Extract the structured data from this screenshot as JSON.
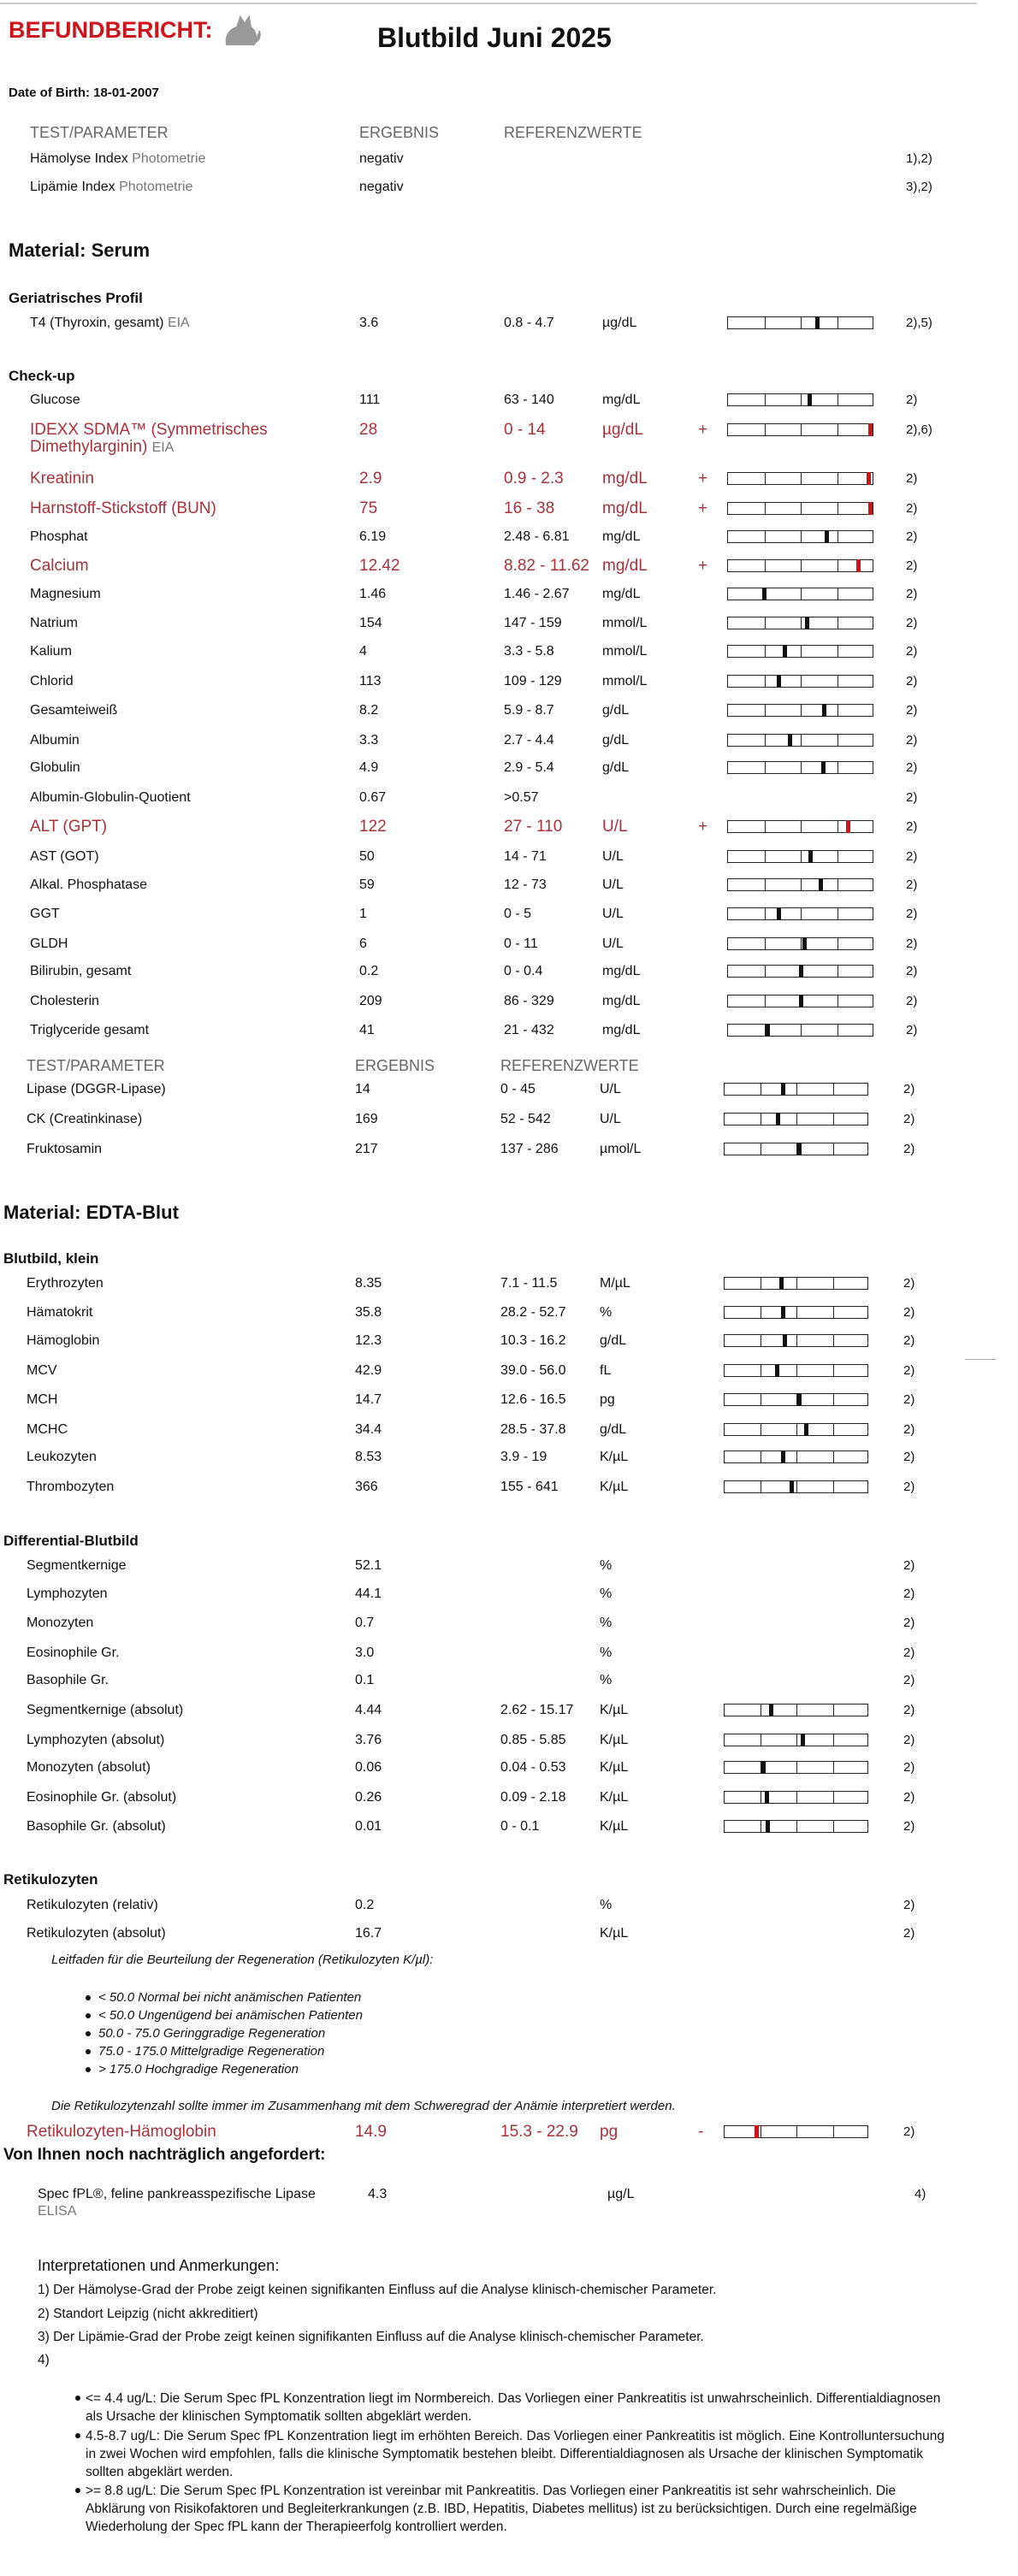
{
  "header": {
    "title": "BEFUNDBERICHT:",
    "subtitle": "Blutbild Juni 2025",
    "dob": "Date of Birth: 18-01-2007"
  },
  "intro": {
    "columns": [
      "TEST/PARAMETER",
      "ERGEBNIS",
      "REFERENZWERTE"
    ],
    "rows": [
      {
        "param": "Hämolyse Index",
        "method": "Photometrie",
        "result": "negativ",
        "note": "1),2)"
      },
      {
        "param": "Lipämie Index",
        "method": "Photometrie",
        "result": "negativ",
        "note": "3),2)"
      }
    ]
  },
  "serum": {
    "material": "Material: Serum",
    "profile": {
      "title": "Geriatrisches Profil",
      "rows": [
        {
          "param": "T4 (Thyroxin, gesamt)",
          "method": "EIA",
          "result": "3.6",
          "range": "0.8 - 4.7",
          "unit": "µg/dL",
          "note": "2),5)"
        }
      ]
    },
    "checkup": {
      "title": "Check-up",
      "rows": [
        {
          "param": "Glucose",
          "result": "111",
          "range": "63 - 140",
          "unit": "mg/dL",
          "note": "2)"
        },
        {
          "param": "IDEXX SDMA™ (Symmetrisches Dimethylarginin)",
          "method": "EIA",
          "result": "28",
          "range": "0 - 14",
          "unit": "µg/dL",
          "flag": "+",
          "note": "2),6)"
        },
        {
          "param": "Kreatinin",
          "result": "2.9",
          "range": "0.9 - 2.3",
          "unit": "mg/dL",
          "flag": "+",
          "note": "2)"
        },
        {
          "param": "Harnstoff-Stickstoff (BUN)",
          "result": "75",
          "range": "16 - 38",
          "unit": "mg/dL",
          "flag": "+",
          "note": "2)"
        },
        {
          "param": "Phosphat",
          "result": "6.19",
          "range": "2.48 - 6.81",
          "unit": "mg/dL",
          "note": "2)"
        },
        {
          "param": "Calcium",
          "result": "12.42",
          "range": "8.82 - 11.62",
          "unit": "mg/dL",
          "flag": "+",
          "note": "2)"
        },
        {
          "param": "Magnesium",
          "result": "1.46",
          "range": "1.46 - 2.67",
          "unit": "mg/dL",
          "note": "2)"
        },
        {
          "param": "Natrium",
          "result": "154",
          "range": "147 - 159",
          "unit": "mmol/L",
          "note": "2)"
        },
        {
          "param": "Kalium",
          "result": "4",
          "range": "3.3 - 5.8",
          "unit": "mmol/L",
          "note": "2)"
        },
        {
          "param": "Chlorid",
          "result": "113",
          "range": "109 - 129",
          "unit": "mmol/L",
          "note": "2)"
        },
        {
          "param": "Gesamteiweiß",
          "result": "8.2",
          "range": "5.9 - 8.7",
          "unit": "g/dL",
          "note": "2)"
        },
        {
          "param": "Albumin",
          "result": "3.3",
          "range": "2.7 - 4.4",
          "unit": "g/dL",
          "note": "2)"
        },
        {
          "param": "Globulin",
          "result": "4.9",
          "range": "2.9 - 5.4",
          "unit": "g/dL",
          "note": "2)"
        },
        {
          "param": "Albumin-Globulin-Quotient",
          "result": "0.67",
          "range": ">0.57",
          "note": "2)"
        },
        {
          "param": "ALT (GPT)",
          "result": "122",
          "range": "27 - 110",
          "unit": "U/L",
          "flag": "+",
          "note": "2)"
        },
        {
          "param": "AST (GOT)",
          "result": "50",
          "range": "14 - 71",
          "unit": "U/L",
          "note": "2)"
        },
        {
          "param": "Alkal. Phosphatase",
          "result": "59",
          "range": "12 - 73",
          "unit": "U/L",
          "note": "2)"
        },
        {
          "param": "GGT",
          "result": "1",
          "range": "0 - 5",
          "unit": "U/L",
          "note": "2)"
        },
        {
          "param": "GLDH",
          "result": "6",
          "range": "0 - 11",
          "unit": "U/L",
          "note": "2)"
        },
        {
          "param": "Bilirubin, gesamt",
          "result": "0.2",
          "range": "0 - 0.4",
          "unit": "mg/dL",
          "note": "2)"
        },
        {
          "param": "Cholesterin",
          "result": "209",
          "range": "86 - 329",
          "unit": "mg/dL",
          "note": "2)"
        },
        {
          "param": "Triglyceride gesamt",
          "result": "41",
          "range": "21 - 432",
          "unit": "mg/dL",
          "note": "2)"
        }
      ]
    },
    "extra": {
      "columns": [
        "TEST/PARAMETER",
        "ERGEBNIS",
        "REFERENZWERTE"
      ],
      "rows": [
        {
          "param": "Lipase (DGGR-Lipase)",
          "result": "14",
          "range": "0 - 45",
          "unit": "U/L",
          "note": "2)"
        },
        {
          "param": "CK (Creatinkinase)",
          "result": "169",
          "range": "52 - 542",
          "unit": "U/L",
          "note": "2)"
        },
        {
          "param": "Fruktosamin",
          "result": "217",
          "range": "137 - 286",
          "unit": "µmol/L",
          "note": "2)"
        }
      ]
    }
  },
  "edta": {
    "material": "Material: EDTA-Blut",
    "blutbild": {
      "title": "Blutbild, klein",
      "rows": [
        {
          "param": "Erythrozyten",
          "result": "8.35",
          "range": "7.1 - 11.5",
          "unit": "M/µL",
          "note": "2)"
        },
        {
          "param": "Hämatokrit",
          "result": "35.8",
          "range": "28.2 - 52.7",
          "unit": "%",
          "note": "2)"
        },
        {
          "param": "Hämoglobin",
          "result": "12.3",
          "range": "10.3 - 16.2",
          "unit": "g/dL",
          "note": "2)"
        },
        {
          "param": "MCV",
          "result": "42.9",
          "range": "39.0 - 56.0",
          "unit": "fL",
          "note": "2)"
        },
        {
          "param": "MCH",
          "result": "14.7",
          "range": "12.6 - 16.5",
          "unit": "pg",
          "note": "2)"
        },
        {
          "param": "MCHC",
          "result": "34.4",
          "range": "28.5 - 37.8",
          "unit": "g/dL",
          "note": "2)"
        },
        {
          "param": "Leukozyten",
          "result": "8.53",
          "range": "3.9 - 19",
          "unit": "K/µL",
          "note": "2)"
        },
        {
          "param": "Thrombozyten",
          "result": "366",
          "range": "155 - 641",
          "unit": "K/µL",
          "note": "2)"
        }
      ]
    },
    "differential": {
      "title": "Differential-Blutbild",
      "rows": [
        {
          "param": "Segmentkernige",
          "result": "52.1",
          "unit": "%",
          "note": "2)"
        },
        {
          "param": "Lymphozyten",
          "result": "44.1",
          "unit": "%",
          "note": "2)"
        },
        {
          "param": "Monozyten",
          "result": "0.7",
          "unit": "%",
          "note": "2)"
        },
        {
          "param": "Eosinophile Gr.",
          "result": "3.0",
          "unit": "%",
          "note": "2)"
        },
        {
          "param": "Basophile Gr.",
          "result": "0.1",
          "unit": "%",
          "note": "2)"
        },
        {
          "param": "Segmentkernige (absolut)",
          "result": "4.44",
          "range": "2.62 - 15.17",
          "unit": "K/µL",
          "note": "2)"
        },
        {
          "param": "Lymphozyten (absolut)",
          "result": "3.76",
          "range": "0.85 - 5.85",
          "unit": "K/µL",
          "note": "2)"
        },
        {
          "param": "Monozyten (absolut)",
          "result": "0.06",
          "range": "0.04 - 0.53",
          "unit": "K/µL",
          "note": "2)"
        },
        {
          "param": "Eosinophile Gr. (absolut)",
          "result": "0.26",
          "range": "0.09 - 2.18",
          "unit": "K/µL",
          "note": "2)"
        },
        {
          "param": "Basophile Gr. (absolut)",
          "result": "0.01",
          "range": "0 - 0.1",
          "unit": "K/µL",
          "note": "2)"
        }
      ]
    },
    "retikulozyten": {
      "title": "Retikulozyten",
      "rows": [
        {
          "param": "Retikulozyten (relativ)",
          "result": "0.2",
          "unit": "%",
          "note": "2)"
        },
        {
          "param": "Retikulozyten (absolut)",
          "result": "16.7",
          "unit": "K/µL",
          "note": "2)"
        }
      ],
      "guide": {
        "title": "Leitfaden für die Beurteilung der Regeneration (Retikulozyten K/µl):",
        "items": [
          "< 50.0 Normal bei nicht anämischen Patienten",
          "< 50.0 Ungenügend bei anämischen Patienten",
          "50.0 - 75.0 Geringgradige Regeneration",
          "75.0 - 175.0 Mittelgradige Regeneration",
          "> 175.0 Hochgradige Regeneration"
        ]
      },
      "note": "Die Retikulozytenzahl sollte immer im Zusammenhang mit dem Schweregrad der Anämie interpretiert werden.",
      "extra_row": {
        "param": "Retikulozyten-Hämoglobin",
        "result": "14.9",
        "range": "15.3 - 22.9",
        "unit": "pg",
        "flag": "-",
        "note": "2)"
      }
    }
  },
  "requested": {
    "title": "Von Ihnen noch nachträglich angefordert:",
    "rows": [
      {
        "param": "Spec fPL®, feline pankreasspezifische Lipase",
        "method": "ELISA",
        "result": "4.3",
        "unit": "µg/L",
        "note": "4)"
      }
    ]
  },
  "remarks": {
    "title": "Interpretationen und Anmerkungen:",
    "items": [
      "1) Der Hämolyse-Grad der Probe zeigt keinen signifikanten Einfluss auf die Analyse klinisch-chemischer Parameter.",
      "2) Standort Leipzig (nicht akkreditiert)",
      "3) Der Lipämie-Grad der Probe zeigt keinen signifikanten Einfluss auf die Analyse klinisch-chemischer Parameter.",
      "4)"
    ],
    "bullets": [
      "<= 4.4 ug/L: Die Serum Spec fPL Konzentration liegt im Normbereich. Das Vorliegen einer Pankreatitis ist unwahrscheinlich. Differentialdiagnosen als Ursache der klinischen Symptomatik sollten abgeklärt werden.",
      "4.5-8.7 ug/L: Die Serum Spec fPL Konzentration liegt im erhöhten Bereich. Das Vorliegen einer Pankreatitis ist möglich. Eine Kontrolluntersuchung in zwei Wochen wird empfohlen, falls die klinische Symptomatik bestehen bleibt. Differentialdiagnosen als Ursache der klinischen Symptomatik sollten abgeklärt werden.",
      ">= 8.8 ug/L: Die Serum Spec fPL Konzentration ist vereinbar mit Pankreatitis. Das Vorliegen einer Pankreatitis ist sehr wahrscheinlich. Die Abklärung von Risikofaktoren und Begleiterkrankungen (z.B. IBD, Hepatitis, Diabetes mellitus) ist zu berücksichtigen. Durch eine regelmäßige Wiederholung der Spec fPL kann der Therapieerfolg kontrolliert werden."
    ]
  }
}
